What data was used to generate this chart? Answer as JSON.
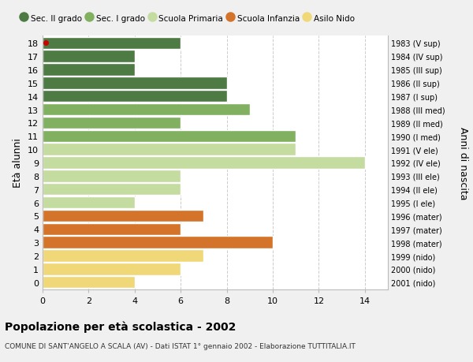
{
  "ages": [
    18,
    17,
    16,
    15,
    14,
    13,
    12,
    11,
    10,
    9,
    8,
    7,
    6,
    5,
    4,
    3,
    2,
    1,
    0
  ],
  "years": [
    "1983 (V sup)",
    "1984 (IV sup)",
    "1985 (III sup)",
    "1986 (II sup)",
    "1987 (I sup)",
    "1988 (III med)",
    "1989 (II med)",
    "1990 (I med)",
    "1991 (V ele)",
    "1992 (IV ele)",
    "1993 (III ele)",
    "1994 (II ele)",
    "1995 (I ele)",
    "1996 (mater)",
    "1997 (mater)",
    "1998 (mater)",
    "1999 (nido)",
    "2000 (nido)",
    "2001 (nido)"
  ],
  "values": [
    6,
    4,
    4,
    8,
    8,
    9,
    6,
    11,
    11,
    14,
    6,
    6,
    4,
    7,
    6,
    10,
    7,
    6,
    4
  ],
  "categories": [
    "Sec. II grado",
    "Sec. II grado",
    "Sec. II grado",
    "Sec. II grado",
    "Sec. II grado",
    "Sec. I grado",
    "Sec. I grado",
    "Sec. I grado",
    "Scuola Primaria",
    "Scuola Primaria",
    "Scuola Primaria",
    "Scuola Primaria",
    "Scuola Primaria",
    "Scuola Infanzia",
    "Scuola Infanzia",
    "Scuola Infanzia",
    "Asilo Nido",
    "Asilo Nido",
    "Asilo Nido"
  ],
  "colors": {
    "Sec. II grado": "#4e7a44",
    "Sec. I grado": "#80b060",
    "Scuola Primaria": "#c5dca0",
    "Scuola Infanzia": "#d4732a",
    "Asilo Nido": "#f0d878"
  },
  "legend_order": [
    "Sec. II grado",
    "Sec. I grado",
    "Scuola Primaria",
    "Scuola Infanzia",
    "Asilo Nido"
  ],
  "ylabel_left": "Età alunni",
  "ylabel_right": "Anni di nascita",
  "title": "Popolazione per età scolastica - 2002",
  "subtitle": "COMUNE DI SANT'ANGELO A SCALA (AV) - Dati ISTAT 1° gennaio 2002 - Elaborazione TUTTITALIA.IT",
  "xlim": [
    0,
    15
  ],
  "bg_color": "#f0f0f0",
  "plot_bg_color": "#ffffff",
  "grid_color": "#cccccc",
  "dot_color": "#cc0000"
}
